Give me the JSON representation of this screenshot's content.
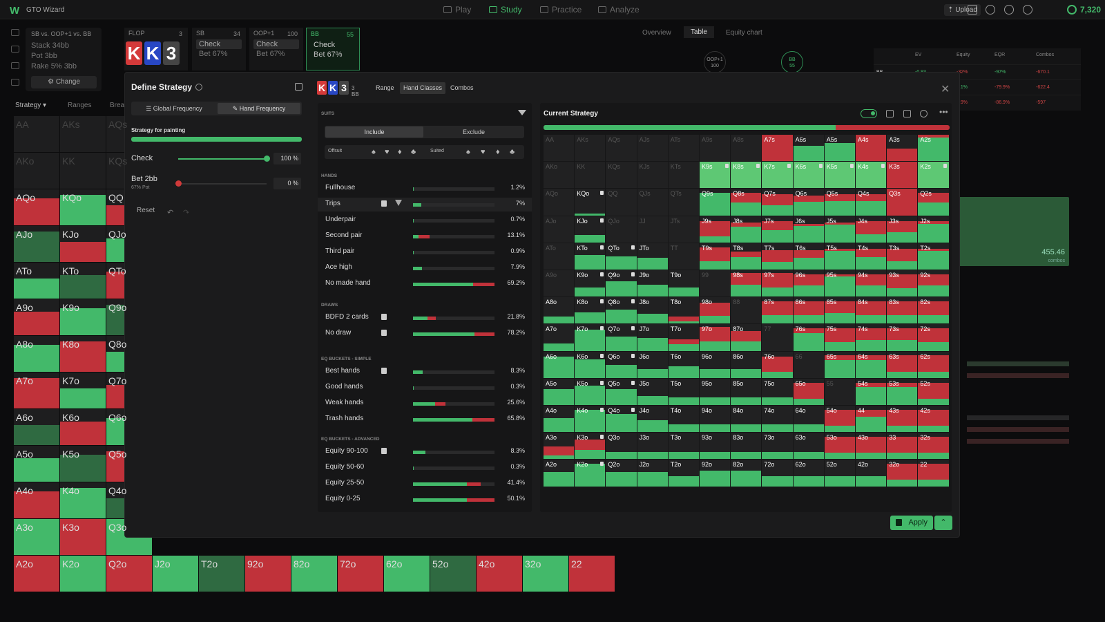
{
  "topbar": {
    "logo": "W",
    "app_name": "GTO Wizard",
    "nav": [
      {
        "label": "Play",
        "icon": "play-icon"
      },
      {
        "label": "Study",
        "icon": "study-icon"
      },
      {
        "label": "Practice",
        "icon": "practice-icon"
      },
      {
        "label": "Analyze",
        "icon": "analyze-icon"
      }
    ],
    "upload_label": "Upload",
    "credits": "7,320"
  },
  "spot": {
    "title": "SB vs. OOP+1 vs. BB",
    "stack": "Stack 34bb",
    "pot": "Pot 3bb",
    "rake": "Rake 5% 3bb",
    "change_label": "Change"
  },
  "flop": {
    "label": "FLOP",
    "count": "3",
    "cards": [
      {
        "rank": "K",
        "color": "#d43a3a"
      },
      {
        "rank": "K",
        "color": "#2847c4"
      },
      {
        "rank": "3",
        "color": "#454545"
      }
    ]
  },
  "actions": [
    {
      "player": "SB",
      "count": "34",
      "action1": "Check",
      "action2": "Bet 67%"
    },
    {
      "player": "OOP+1",
      "count": "100",
      "action1": "Check",
      "action2": "Bet 67%"
    },
    {
      "player": "BB",
      "count": "55",
      "action1": "Check",
      "action2": "Bet 67%"
    }
  ],
  "overview_tabs": [
    "Overview",
    "Table",
    "Equity chart"
  ],
  "seats": [
    {
      "name": "OOP+1",
      "stack": "100"
    },
    {
      "name": "BB",
      "stack": "55"
    }
  ],
  "results_table": {
    "headers": [
      "EV",
      "Equity",
      "EQR",
      "Combos"
    ],
    "rows": [
      {
        "label": "BB",
        "values": [
          "-0.93",
          "-32%",
          "-97%",
          "-670.1"
        ]
      },
      {
        "label": "",
        "values": [
          "",
          "4.1%",
          "-79.9%",
          "-622.4"
        ]
      },
      {
        "label": "",
        "values": [
          "",
          "3.9%",
          "-86.9%",
          "-597"
        ]
      }
    ]
  },
  "bg_combos": {
    "value": "455.46",
    "label": "combos"
  },
  "bg": {
    "strategy_label": "Strategy",
    "ranges_label": "Ranges",
    "breakdown_label": "Brea",
    "rows": [
      [
        "AA",
        "AKs",
        "AQs"
      ],
      [
        "AKo",
        "KK",
        "KQs"
      ],
      [
        "AQo",
        "KQo",
        "QQ"
      ],
      [
        "AJo",
        "KJo",
        "QJo"
      ],
      [
        "ATo",
        "KTo",
        "QTo"
      ],
      [
        "A9o",
        "K9o",
        "Q9o"
      ],
      [
        "A8o",
        "K8o",
        "Q8o"
      ],
      [
        "A7o",
        "K7o",
        "Q7o"
      ],
      [
        "A6o",
        "K6o",
        "Q6o"
      ],
      [
        "A5o",
        "K5o",
        "Q5o"
      ],
      [
        "A4o",
        "K4o",
        "Q4o"
      ],
      [
        "A3o",
        "K3o",
        "Q3o"
      ],
      [
        "A2o",
        "K2o",
        "Q2o",
        "J2o",
        "T2o",
        "92o",
        "82o",
        "72o",
        "62o",
        "52o",
        "42o",
        "32o",
        "22"
      ]
    ]
  },
  "define": {
    "title": "Define Strategy",
    "mode_global": "Global Frequency",
    "mode_hand": "Hand Frequency",
    "painting_label": "Strategy for painting",
    "strategies": [
      {
        "name": "Check",
        "sub": "",
        "value": "100",
        "unit": "%",
        "fraction": 1.0,
        "color": "#43b96a"
      },
      {
        "name": "Bet 2bb",
        "sub": "67% Pot",
        "value": "0",
        "unit": "%",
        "fraction": 0.0,
        "color": "#d03a3a"
      }
    ],
    "reset_label": "Reset"
  },
  "hand_classes": {
    "board": [
      {
        "rank": "K",
        "color": "#d43a3a"
      },
      {
        "rank": "K",
        "color": "#2847c4"
      },
      {
        "rank": "3",
        "color": "#454545"
      }
    ],
    "bb": "3 BB",
    "tabs": [
      "Range",
      "Hand Classes",
      "Combos"
    ],
    "suits_header": "SUITS",
    "include_label": "Include",
    "exclude_label": "Exclude",
    "offsuit_label": "Offsuit",
    "suited_label": "Suited",
    "suit_glyphs": [
      "♠",
      "♥",
      "♦",
      "♣"
    ],
    "sections": [
      {
        "title": "HANDS",
        "rows": [
          {
            "name": "Fullhouse",
            "pct": "1.2%",
            "green": 0.01,
            "red": 0.0,
            "lock": false
          },
          {
            "name": "Trips",
            "pct": "7%",
            "green": 0.1,
            "red": 0.0,
            "lock": true
          },
          {
            "name": "Underpair",
            "pct": "0.7%",
            "green": 0.01,
            "red": 0.0,
            "lock": false
          },
          {
            "name": "Second pair",
            "pct": "13.1%",
            "green": 0.07,
            "red": 0.13,
            "lock": false
          },
          {
            "name": "Third pair",
            "pct": "0.9%",
            "green": 0.01,
            "red": 0.0,
            "lock": false
          },
          {
            "name": "Ace high",
            "pct": "7.9%",
            "green": 0.11,
            "red": 0.0,
            "lock": false
          },
          {
            "name": "No made hand",
            "pct": "69.2%",
            "green": 0.74,
            "red": 0.26,
            "lock": false
          }
        ]
      },
      {
        "title": "DRAWS",
        "rows": [
          {
            "name": "BDFD 2 cards",
            "pct": "21.8%",
            "green": 0.18,
            "red": 0.1,
            "lock": true
          },
          {
            "name": "No draw",
            "pct": "78.2%",
            "green": 0.75,
            "red": 0.25,
            "lock": true
          }
        ]
      },
      {
        "title": "EQ BUCKETS - SIMPLE",
        "rows": [
          {
            "name": "Best hands",
            "pct": "8.3%",
            "green": 0.12,
            "red": 0.0,
            "lock": true
          },
          {
            "name": "Good hands",
            "pct": "0.3%",
            "green": 0.01,
            "red": 0.0,
            "lock": false
          },
          {
            "name": "Weak hands",
            "pct": "25.6%",
            "green": 0.27,
            "red": 0.13,
            "lock": false
          },
          {
            "name": "Trash hands",
            "pct": "65.8%",
            "green": 0.73,
            "red": 0.27,
            "lock": false
          }
        ]
      },
      {
        "title": "EQ BUCKETS - ADVANCED",
        "rows": [
          {
            "name": "Equity 90-100",
            "pct": "8.3%",
            "green": 0.15,
            "red": 0.0,
            "lock": true
          },
          {
            "name": "Equity 50-60",
            "pct": "0.3%",
            "green": 0.01,
            "red": 0.0,
            "lock": false
          },
          {
            "name": "Equity 25-50",
            "pct": "41.4%",
            "green": 0.66,
            "red": 0.17,
            "lock": false
          },
          {
            "name": "Equity 0-25",
            "pct": "50.1%",
            "green": 0.66,
            "red": 0.34,
            "lock": false
          }
        ]
      }
    ]
  },
  "current_strategy": {
    "title": "Current Strategy",
    "check_share": 0.72,
    "ranks": [
      "A",
      "K",
      "Q",
      "J",
      "T",
      "9",
      "8",
      "7",
      "6",
      "5",
      "4",
      "3",
      "2"
    ],
    "row_fill": [
      [
        0,
        0,
        0,
        0,
        0,
        0,
        0,
        1,
        0.6,
        0.7,
        1,
        0.5,
        1
      ],
      [
        0,
        0,
        0,
        0,
        0,
        1,
        1,
        1,
        1,
        1,
        1,
        1,
        1
      ],
      [
        0,
        0.08,
        0,
        0,
        0,
        0.85,
        0.85,
        0.8,
        0.75,
        0.8,
        0.8,
        1,
        0.85
      ],
      [
        0,
        0.3,
        0,
        0,
        0,
        0.8,
        0.75,
        0.8,
        0.7,
        0.75,
        0.8,
        0.8,
        0.8
      ],
      [
        0,
        0.55,
        0.5,
        0.45,
        0,
        0.85,
        0.7,
        0.75,
        0.75,
        0.8,
        0.8,
        0.8,
        0.8
      ],
      [
        0,
        0.35,
        0.6,
        0.45,
        0.35,
        0,
        0.9,
        0.9,
        0.85,
        0.85,
        0.85,
        0.85,
        0.85
      ],
      [
        0.3,
        0.45,
        0.55,
        0.4,
        0.3,
        0.8,
        0,
        0.85,
        0.85,
        0.85,
        0.85,
        0.85,
        0.85
      ],
      [
        0.3,
        0.8,
        0.55,
        0.5,
        0.45,
        0.9,
        0.75,
        0,
        0.85,
        0.85,
        0.85,
        0.85,
        0.85
      ],
      [
        0.8,
        0.7,
        0.5,
        0.35,
        0.45,
        0.35,
        0.35,
        0.8,
        0,
        0.85,
        0.85,
        0.85,
        0.85
      ],
      [
        0.6,
        0.75,
        0.6,
        0.35,
        0.3,
        0.3,
        0.3,
        0.3,
        0.85,
        0,
        0.85,
        0.85,
        0.85
      ],
      [
        0.55,
        0.85,
        0.7,
        0.45,
        0.3,
        0.3,
        0.3,
        0.3,
        0.3,
        0.85,
        0.85,
        0.85,
        0.85
      ],
      [
        0.5,
        0.75,
        0.3,
        0.3,
        0.3,
        0.3,
        0.3,
        0.3,
        0.3,
        0.85,
        0.85,
        0.85,
        0.85
      ],
      [
        0.55,
        0.85,
        0.55,
        0.55,
        0.4,
        0.6,
        0.6,
        0.4,
        0.4,
        0.4,
        0.4,
        0.85,
        0.85
      ]
    ],
    "row_green": [
      [
        0,
        0,
        0,
        0,
        0,
        0,
        0,
        0,
        1,
        1,
        0,
        0,
        0.9
      ],
      [
        0,
        0,
        0,
        0,
        0,
        1,
        1,
        1,
        1,
        1,
        1,
        0,
        1
      ],
      [
        0,
        1,
        0,
        0,
        0,
        1,
        0.6,
        0.5,
        0.7,
        0.7,
        0.7,
        0,
        0.6
      ],
      [
        0,
        1,
        0,
        0,
        0,
        0.3,
        0.8,
        0.6,
        0.9,
        0.9,
        0.4,
        0.5,
        0.9
      ],
      [
        0,
        1,
        1,
        1,
        0,
        0.4,
        0.7,
        0.4,
        0.6,
        0.9,
        0.6,
        0.4,
        0.9
      ],
      [
        0,
        1,
        1,
        1,
        1,
        0,
        0.5,
        0.4,
        0.5,
        0.9,
        0.5,
        0.4,
        0.5
      ],
      [
        1,
        1,
        1,
        1,
        0.4,
        0.4,
        0,
        0.4,
        0.4,
        0.5,
        0.4,
        0.4,
        0.4
      ],
      [
        1,
        1,
        1,
        1,
        0.6,
        0.4,
        0.5,
        0,
        0.8,
        0.4,
        0.5,
        0.5,
        0.4
      ],
      [
        1,
        1,
        1,
        1,
        1,
        1,
        1,
        0.3,
        0,
        0.8,
        0.8,
        0.3,
        0.3
      ],
      [
        1,
        1,
        1,
        1,
        1,
        1,
        1,
        1,
        0.3,
        0,
        0.8,
        0.8,
        0.3
      ],
      [
        1,
        1,
        1,
        1,
        1,
        1,
        1,
        1,
        1,
        0.3,
        0.7,
        0.3,
        0.3
      ],
      [
        0.3,
        0.5,
        1,
        1,
        1,
        1,
        1,
        1,
        1,
        0.3,
        0.3,
        0.3,
        0.3
      ],
      [
        1,
        1,
        1,
        1,
        1,
        1,
        1,
        1,
        1,
        1,
        1,
        0.3,
        0.3
      ]
    ],
    "locked": [
      "K9s",
      "K8s",
      "K7s",
      "K6s",
      "K5s",
      "K4s",
      "K2s",
      "KQo",
      "KJo",
      "KTo",
      "K9o",
      "K8o",
      "K7o",
      "K6o",
      "K5o",
      "K4o",
      "K3o",
      "K2o",
      "QTo",
      "Q9o",
      "Q8o",
      "Q7o",
      "Q6o",
      "Q5o",
      "Q4o"
    ],
    "apply_label": "Apply"
  },
  "colors": {
    "green": "#43b96a",
    "red": "#c0323a",
    "brightgreen": "#5ec874",
    "dark": "#212122"
  }
}
